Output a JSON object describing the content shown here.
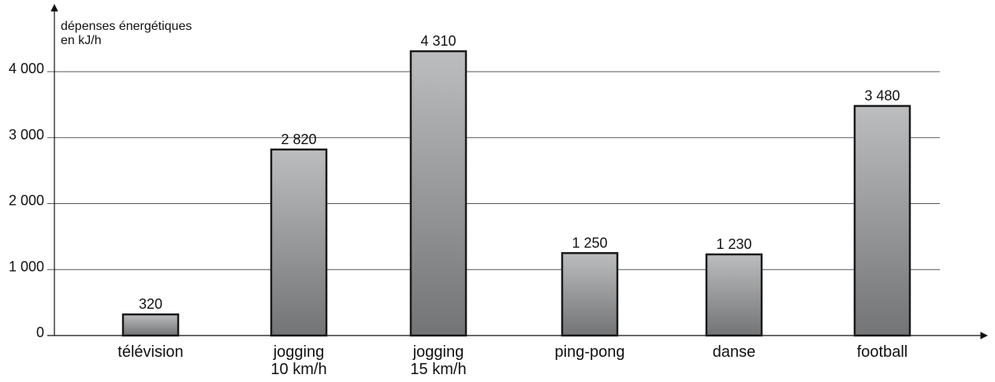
{
  "chart_data": {
    "type": "bar",
    "ylabel_lines": [
      "dépenses énergétiques",
      "en kJ/h"
    ],
    "categories": [
      [
        "télévision"
      ],
      [
        "jogging",
        "10 km/h"
      ],
      [
        "jogging",
        "15 km/h"
      ],
      [
        "ping-pong"
      ],
      [
        "danse"
      ],
      [
        "football"
      ]
    ],
    "values": [
      320,
      2820,
      4310,
      1250,
      1230,
      3480
    ],
    "value_labels": [
      "320",
      "2 820",
      "4 310",
      "1 250",
      "1 230",
      "3 480"
    ],
    "yticks": [
      0,
      1000,
      2000,
      3000,
      4000
    ],
    "ytick_labels": [
      "0",
      "1 000",
      "2 000",
      "3 000",
      "4 000"
    ],
    "ylim": [
      0,
      4000
    ],
    "grid": true,
    "legend": "none"
  },
  "colors": {
    "bar_top": "#bcbdbf",
    "bar_bottom": "#737476",
    "bar_border": "#1a1a1a",
    "grid": "#555555",
    "axis": "#111111"
  }
}
